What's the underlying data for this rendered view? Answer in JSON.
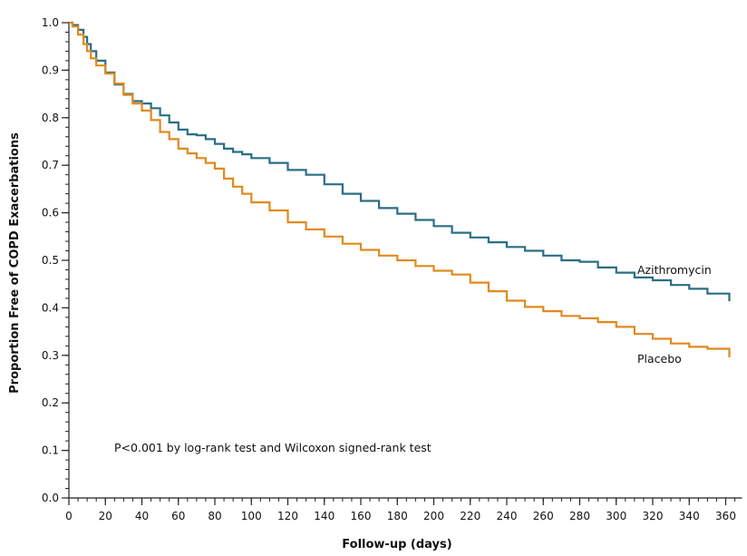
{
  "chart_data": {
    "type": "line",
    "title": "",
    "xlabel": "Follow-up (days)",
    "ylabel": "Proportion Free of COPD Exacerbations",
    "xlim": [
      0,
      365
    ],
    "ylim": [
      0,
      1.0
    ],
    "x_ticks": [
      0,
      20,
      40,
      60,
      80,
      100,
      120,
      140,
      160,
      180,
      200,
      220,
      240,
      260,
      280,
      300,
      320,
      340,
      360
    ],
    "x_tick_labels": [
      "0",
      "20",
      "40",
      "60",
      "80",
      "100",
      "120",
      "140",
      "160",
      "180",
      "200",
      "220",
      "240",
      "260",
      "280",
      "300",
      "320",
      "340",
      "360"
    ],
    "y_ticks": [
      0,
      0.1,
      0.2,
      0.3,
      0.4,
      0.5,
      0.6,
      0.7,
      0.8,
      0.9,
      1.0
    ],
    "y_tick_labels": [
      "0.0",
      "0.1",
      "0.2",
      "0.3",
      "0.4",
      "0.5",
      "0.6",
      "0.7",
      "0.8",
      "0.9",
      "1.0"
    ],
    "grid": false,
    "annotation": "P<0.001 by log-rank test and Wilcoxon signed-rank test",
    "series": [
      {
        "name": "Azithromycin",
        "color": "#2a6e85",
        "x": [
          0,
          2,
          5,
          8,
          10,
          12,
          15,
          20,
          25,
          30,
          35,
          40,
          45,
          50,
          55,
          60,
          65,
          70,
          75,
          80,
          85,
          90,
          95,
          100,
          110,
          120,
          130,
          140,
          150,
          160,
          170,
          180,
          190,
          200,
          210,
          220,
          230,
          240,
          250,
          260,
          270,
          280,
          290,
          300,
          310,
          320,
          330,
          340,
          350,
          362
        ],
        "y": [
          1.0,
          0.995,
          0.985,
          0.97,
          0.955,
          0.94,
          0.92,
          0.895,
          0.87,
          0.85,
          0.835,
          0.83,
          0.82,
          0.805,
          0.79,
          0.775,
          0.765,
          0.763,
          0.755,
          0.745,
          0.735,
          0.728,
          0.723,
          0.715,
          0.705,
          0.69,
          0.68,
          0.66,
          0.64,
          0.625,
          0.61,
          0.598,
          0.585,
          0.572,
          0.558,
          0.548,
          0.538,
          0.528,
          0.52,
          0.51,
          0.5,
          0.497,
          0.485,
          0.474,
          0.464,
          0.458,
          0.448,
          0.44,
          0.43,
          0.414
        ]
      },
      {
        "name": "Placebo",
        "color": "#e08a1e",
        "x": [
          0,
          2,
          5,
          8,
          10,
          12,
          15,
          20,
          25,
          30,
          35,
          40,
          45,
          50,
          55,
          60,
          65,
          70,
          75,
          80,
          85,
          90,
          95,
          100,
          110,
          120,
          130,
          140,
          150,
          160,
          170,
          180,
          190,
          200,
          210,
          220,
          230,
          240,
          250,
          260,
          270,
          280,
          290,
          300,
          310,
          320,
          330,
          340,
          350,
          362
        ],
        "y": [
          1.0,
          0.992,
          0.975,
          0.955,
          0.94,
          0.925,
          0.91,
          0.893,
          0.872,
          0.848,
          0.83,
          0.815,
          0.795,
          0.77,
          0.755,
          0.735,
          0.725,
          0.715,
          0.705,
          0.693,
          0.672,
          0.655,
          0.64,
          0.622,
          0.605,
          0.58,
          0.565,
          0.55,
          0.535,
          0.522,
          0.51,
          0.5,
          0.488,
          0.478,
          0.47,
          0.453,
          0.435,
          0.415,
          0.402,
          0.393,
          0.383,
          0.378,
          0.37,
          0.36,
          0.345,
          0.335,
          0.325,
          0.318,
          0.314,
          0.296
        ]
      }
    ]
  }
}
